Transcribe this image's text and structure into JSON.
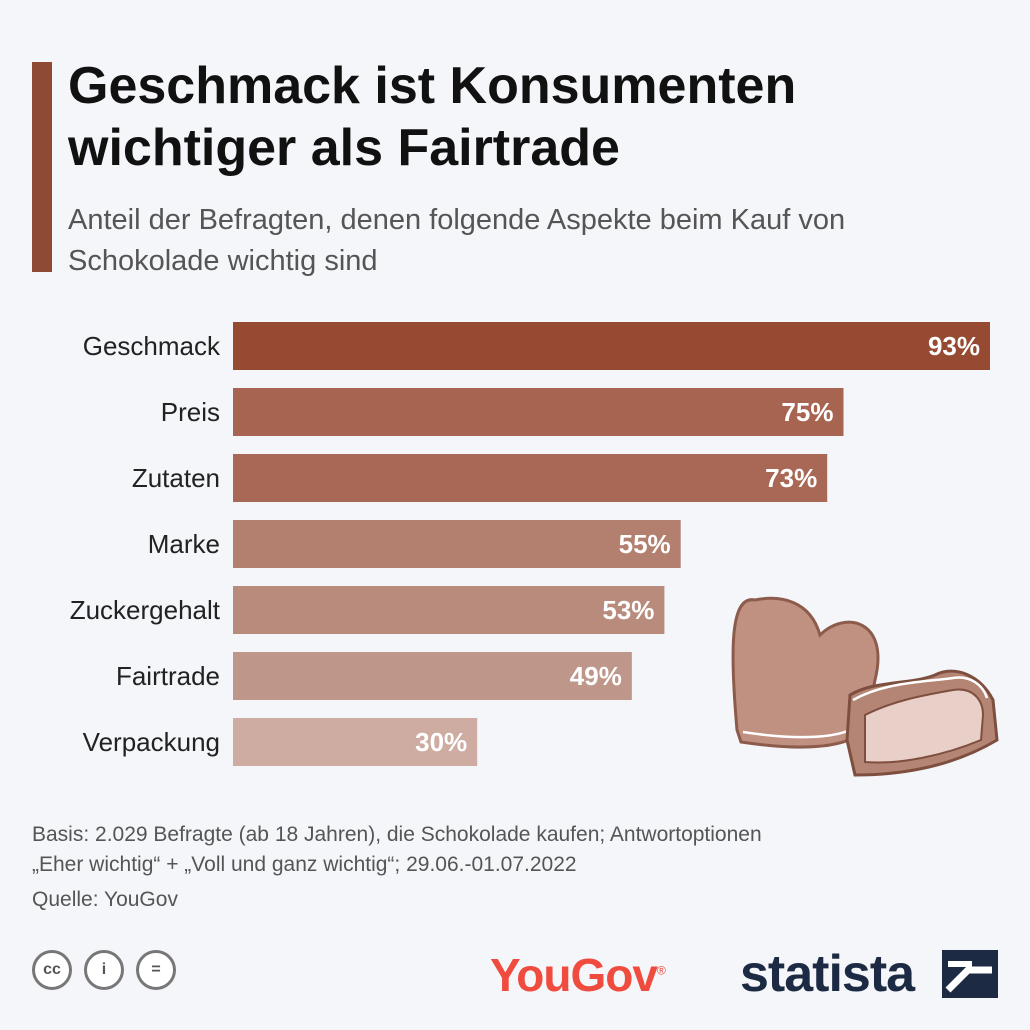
{
  "title": "Geschmack ist Konsumenten wichtiger als Fairtrade",
  "subtitle": "Anteil der Befragten, denen folgende Aspekte beim Kauf von Schokolade wichtig sind",
  "chart_data": {
    "type": "bar",
    "orientation": "horizontal",
    "title": "Geschmack ist Konsumenten wichtiger als Fairtrade",
    "subtitle": "Anteil der Befragten, denen folgende Aspekte beim Kauf von Schokolade wichtig sind",
    "categories": [
      "Geschmack",
      "Preis",
      "Zutaten",
      "Marke",
      "Zuckergehalt",
      "Fairtrade",
      "Verpackung"
    ],
    "values": [
      93,
      75,
      73,
      55,
      53,
      49,
      30
    ],
    "value_labels": [
      "93%",
      "75%",
      "73%",
      "55%",
      "53%",
      "49%",
      "30%"
    ],
    "unit": "%",
    "xlim": [
      0,
      93
    ],
    "colors": [
      "#964a31",
      "#a66451",
      "#a86855",
      "#b3806f",
      "#b88b7c",
      "#bf978a",
      "#ceaca2"
    ],
    "grid": false,
    "legend": "none"
  },
  "footer": {
    "note_line1": "Basis: 2.029 Befragte (ab 18 Jahren), die Schokolade kaufen; Antwortoptionen",
    "note_line2": "„Eher wichtig“ + „Voll und ganz wichtig“; 29.06.-01.07.2022",
    "source": "Quelle: YouGov"
  },
  "license_icons": {
    "cc": "cc",
    "by": "i",
    "nd": "="
  },
  "logos": {
    "yougov": "YouGov",
    "yougov_mark": "®",
    "statista": "statista"
  }
}
